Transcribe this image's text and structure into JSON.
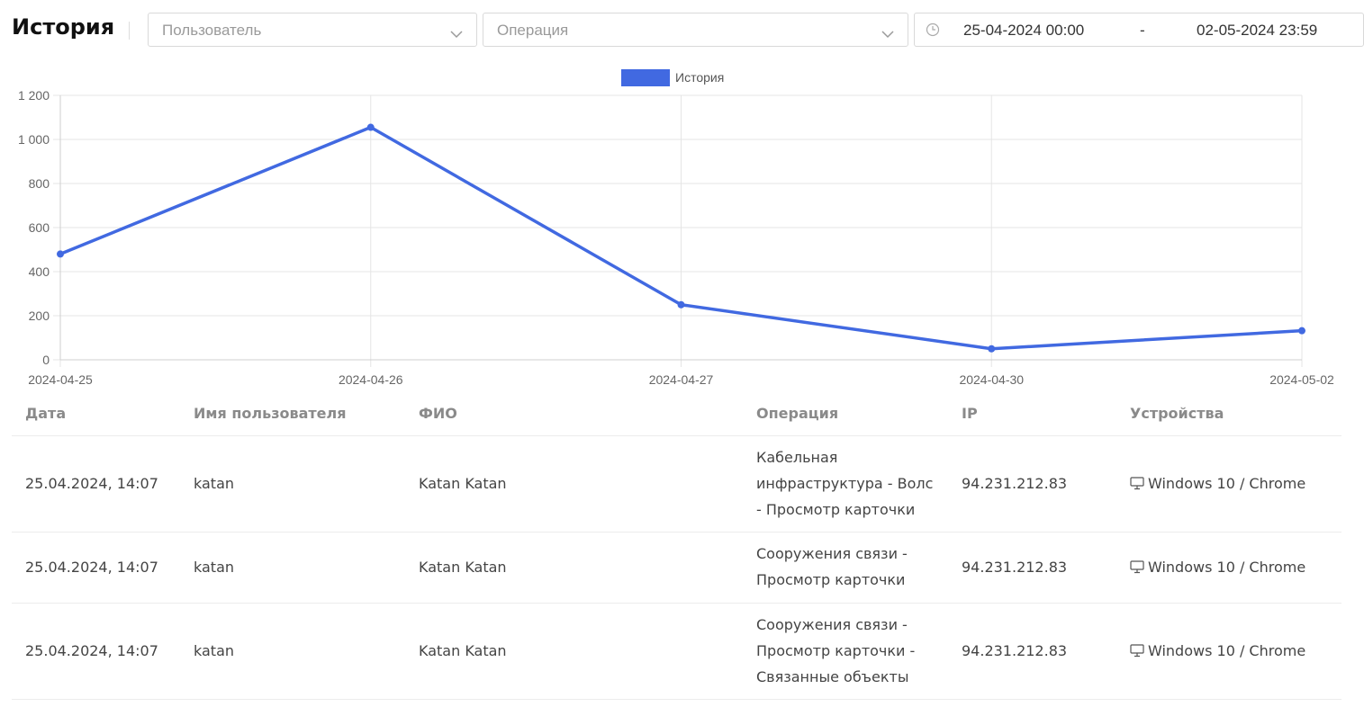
{
  "header": {
    "title": "История",
    "user_select": {
      "placeholder": "Пользователь"
    },
    "operation_select": {
      "placeholder": "Операция"
    },
    "date_range": {
      "from": "25-04-2024 00:00",
      "separator": "-",
      "to": "02-05-2024 23:59"
    }
  },
  "chart_data": {
    "type": "line",
    "legend": [
      "История"
    ],
    "categories": [
      "2024-04-25",
      "2024-04-26",
      "2024-04-27",
      "2024-04-30",
      "2024-05-02"
    ],
    "series": [
      {
        "name": "История",
        "values": [
          480,
          1055,
          250,
          50,
          132
        ],
        "color": "#4169e1"
      }
    ],
    "y_ticks": [
      "1 200",
      "1 000",
      "800",
      "600",
      "400",
      "200",
      "0"
    ],
    "ylim": [
      0,
      1200
    ],
    "grid": true,
    "legend_position": "top-center"
  },
  "table": {
    "columns": [
      "Дата",
      "Имя пользователя",
      "ФИО",
      "Операция",
      "IP",
      "Устройства"
    ],
    "rows": [
      {
        "date": "25.04.2024, 14:07",
        "username": "katan",
        "fio": "Katan Katan",
        "operation": [
          "Кабельная",
          "инфраструктура - Волс",
          "- Просмотр карточки"
        ],
        "ip": "94.231.212.83",
        "device": "Windows 10 / Chrome"
      },
      {
        "date": "25.04.2024, 14:07",
        "username": "katan",
        "fio": "Katan Katan",
        "operation": [
          "Сооружения связи -",
          "Просмотр карточки"
        ],
        "ip": "94.231.212.83",
        "device": "Windows 10 / Chrome"
      },
      {
        "date": "25.04.2024, 14:07",
        "username": "katan",
        "fio": "Katan Katan",
        "operation": [
          "Сооружения связи -",
          "Просмотр карточки -",
          "Связанные объекты"
        ],
        "ip": "94.231.212.83",
        "device": "Windows 10 / Chrome"
      }
    ]
  },
  "icons": {
    "chevron": "chevron-down-icon",
    "clock": "clock-icon",
    "device": "monitor-icon"
  }
}
